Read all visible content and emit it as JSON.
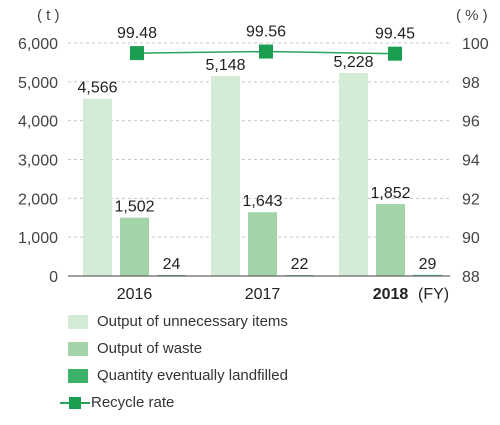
{
  "chart_data": {
    "type": "bar",
    "categories": [
      "2016",
      "2017",
      "2018"
    ],
    "x_unit": "(FY)",
    "y_left_unit": "( t )",
    "y_right_unit": "( % )",
    "y_left_ticks": [
      "0",
      "1,000",
      "2,000",
      "3,000",
      "4,000",
      "5,000",
      "6,000"
    ],
    "y_right_ticks": [
      "88",
      "90",
      "92",
      "94",
      "96",
      "98",
      "100"
    ],
    "ylim_left": [
      0,
      6000
    ],
    "ylim_right": [
      88,
      100
    ],
    "grid": "dashed horizontal",
    "series": [
      {
        "name": "Output of unnecessary items",
        "values": [
          4566,
          5148,
          5228
        ],
        "labels": [
          "4,566",
          "5,148",
          "5,228"
        ],
        "color": "#d4ecd6"
      },
      {
        "name": "Output of waste",
        "values": [
          1502,
          1643,
          1852
        ],
        "labels": [
          "1,502",
          "1,643",
          "1,852"
        ],
        "color": "#a3d3a9"
      },
      {
        "name": "Quantity eventually landfilled",
        "values": [
          24,
          22,
          29
        ],
        "labels": [
          "24",
          "22",
          "29"
        ],
        "color": "#3bb36a"
      }
    ],
    "line_series": {
      "name": "Recycle rate",
      "values": [
        99.48,
        99.56,
        99.45
      ],
      "labels": [
        "99.48",
        "99.56",
        "99.45"
      ],
      "axis": "right",
      "color": "#2aa15a",
      "marker_color": "#1a9f50"
    },
    "legend_position": "bottom-left"
  }
}
